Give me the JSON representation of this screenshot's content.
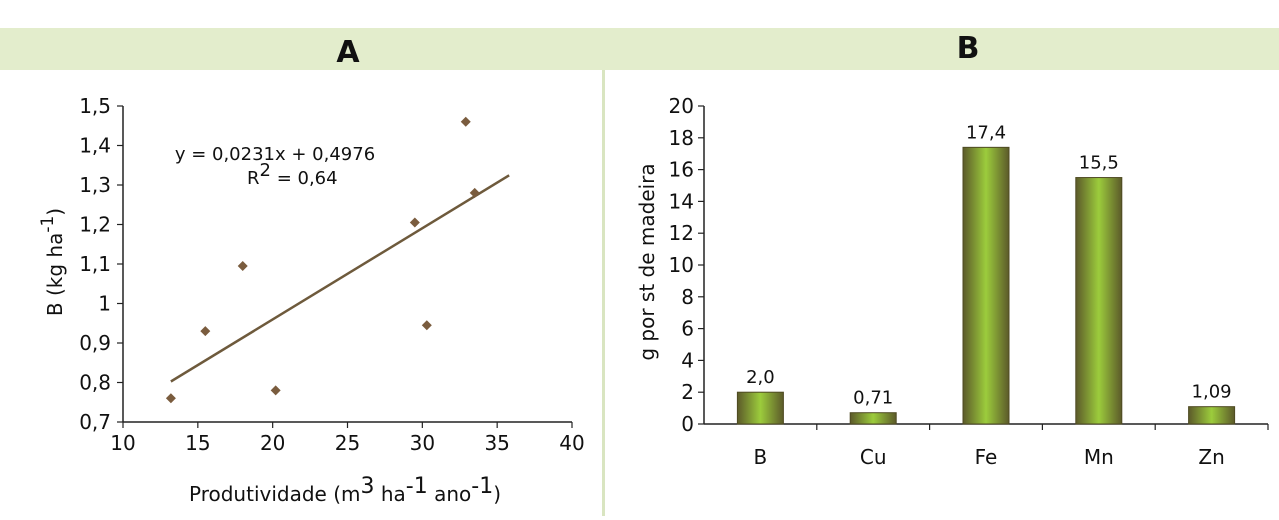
{
  "panels": {
    "a_label": "A",
    "b_label": "B"
  },
  "colors": {
    "header_band": "#e3edcc",
    "divider": "#d9e5c1",
    "marker": "#7a5c3e",
    "trendline": "#6e5a3c",
    "bar_dark": "#5c5a2a",
    "bar_light": "#9ccc3c"
  },
  "chart_data": [
    {
      "type": "scatter",
      "title": "A",
      "xlabel": {
        "prefix": "Produtividade (m",
        "sup1": "3",
        "mid1": " ha",
        "sup2": "-1",
        "mid2": " ano",
        "sup3": "-1",
        "suffix": ")"
      },
      "ylabel": {
        "prefix": "B (kg ha",
        "sup": "-1",
        "suffix": ")"
      },
      "xlim": [
        10,
        40
      ],
      "ylim": [
        0.7,
        1.5
      ],
      "xticks": [
        "10",
        "15",
        "20",
        "25",
        "30",
        "35",
        "40"
      ],
      "yticks": [
        "0,7",
        "0,8",
        "0,9",
        "1",
        "1,1",
        "1,2",
        "1,3",
        "1,4",
        "1,5"
      ],
      "points": [
        {
          "x": 13.2,
          "y": 0.76
        },
        {
          "x": 15.5,
          "y": 0.93
        },
        {
          "x": 18.0,
          "y": 1.095
        },
        {
          "x": 20.2,
          "y": 0.78
        },
        {
          "x": 29.5,
          "y": 1.205
        },
        {
          "x": 30.3,
          "y": 0.945
        },
        {
          "x": 32.9,
          "y": 1.46
        },
        {
          "x": 33.5,
          "y": 1.28
        }
      ],
      "trendline": {
        "slope": 0.0231,
        "intercept": 0.4976,
        "x_start": 13.2,
        "x_end": 35.8
      },
      "equation": "y = 0,0231x + 0,4976",
      "r2": {
        "prefix": "R",
        "sup": "2",
        "suffix": " = 0,64"
      }
    },
    {
      "type": "bar",
      "title": "B",
      "ylabel": "g por st de madeira",
      "categories": [
        "B",
        "Cu",
        "Fe",
        "Mn",
        "Zn"
      ],
      "values": [
        2.0,
        0.71,
        17.4,
        15.5,
        1.09
      ],
      "value_labels": [
        "2,0",
        "0,71",
        "17,4",
        "15,5",
        "1,09"
      ],
      "ylim": [
        0,
        20
      ],
      "yticks": [
        "0",
        "2",
        "4",
        "6",
        "8",
        "10",
        "12",
        "14",
        "16",
        "18",
        "20"
      ]
    }
  ]
}
